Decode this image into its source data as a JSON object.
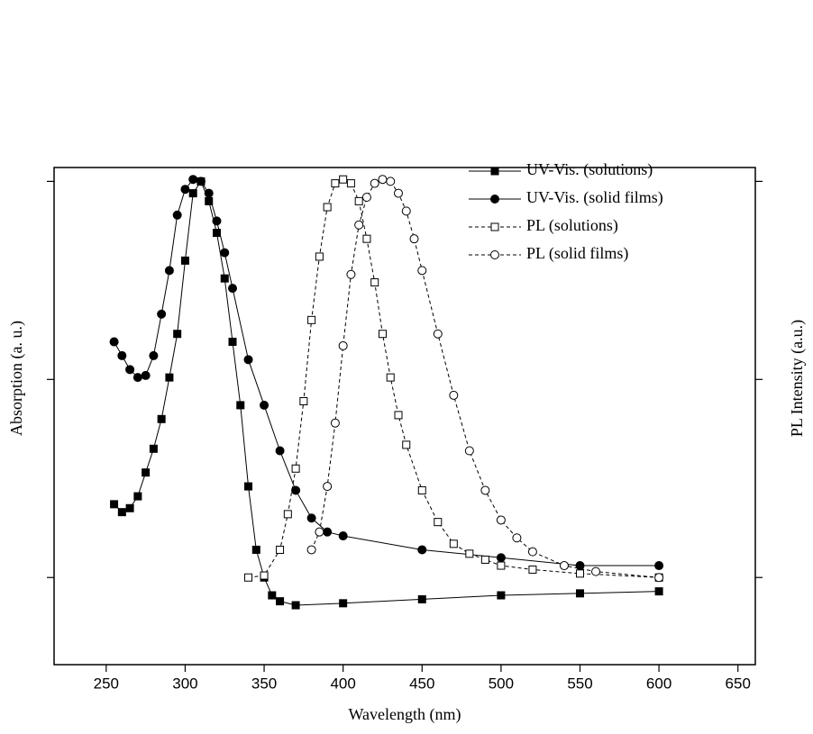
{
  "chart_data": {
    "type": "line",
    "x_label": "Wavelength (nm)",
    "y_label": "Absorption (a. u.)",
    "y2_label": "PL Intensity (a.u.)",
    "xlim": [
      217,
      661
    ],
    "xticks": [
      250,
      300,
      350,
      400,
      450,
      500,
      550,
      600,
      650
    ],
    "ylim": [
      -0.44,
      2.07
    ],
    "yticks": [
      0,
      1,
      2
    ],
    "legend": "upper right",
    "series": [
      {
        "name": "UV-Vis. (solutions)",
        "color": "#000000",
        "marker": "square",
        "filled": true,
        "linestyle": "solid",
        "x": [
          255,
          260,
          265,
          270,
          275,
          280,
          285,
          290,
          295,
          300,
          305,
          310,
          315,
          320,
          325,
          330,
          335,
          340,
          345,
          350,
          355,
          360,
          370,
          400,
          450,
          500,
          550,
          600
        ],
        "values": [
          0.37,
          0.33,
          0.35,
          0.41,
          0.53,
          0.65,
          0.8,
          1.01,
          1.23,
          1.6,
          1.94,
          2.0,
          1.9,
          1.74,
          1.51,
          1.19,
          0.87,
          0.46,
          0.14,
          0.0,
          -0.09,
          -0.12,
          -0.14,
          -0.13,
          -0.11,
          -0.09,
          -0.08,
          -0.07
        ]
      },
      {
        "name": "UV-Vis. (solid films)",
        "color": "#000000",
        "marker": "circle",
        "filled": true,
        "linestyle": "solid",
        "x": [
          255,
          260,
          265,
          270,
          275,
          280,
          285,
          290,
          295,
          300,
          305,
          310,
          315,
          320,
          325,
          330,
          340,
          350,
          360,
          370,
          380,
          390,
          400,
          450,
          500,
          550,
          600
        ],
        "values": [
          1.19,
          1.12,
          1.05,
          1.01,
          1.02,
          1.12,
          1.33,
          1.55,
          1.83,
          1.96,
          2.01,
          2.0,
          1.94,
          1.8,
          1.64,
          1.46,
          1.1,
          0.87,
          0.64,
          0.44,
          0.3,
          0.23,
          0.21,
          0.14,
          0.1,
          0.06,
          0.06
        ]
      },
      {
        "name": "PL (solutions)",
        "color": "#000000",
        "marker": "square",
        "filled": false,
        "linestyle": "dashed",
        "x": [
          340,
          350,
          360,
          365,
          370,
          375,
          380,
          385,
          390,
          395,
          400,
          405,
          410,
          415,
          420,
          425,
          430,
          435,
          440,
          450,
          460,
          470,
          480,
          490,
          500,
          520,
          550,
          600
        ],
        "values": [
          0.0,
          0.01,
          0.14,
          0.32,
          0.55,
          0.89,
          1.3,
          1.62,
          1.87,
          1.99,
          2.01,
          1.99,
          1.9,
          1.71,
          1.49,
          1.23,
          1.01,
          0.82,
          0.67,
          0.44,
          0.28,
          0.17,
          0.12,
          0.09,
          0.06,
          0.04,
          0.02,
          0.0
        ]
      },
      {
        "name": "PL (solid films)",
        "color": "#000000",
        "marker": "circle",
        "filled": false,
        "linestyle": "dashed",
        "x": [
          380,
          385,
          390,
          395,
          400,
          405,
          410,
          415,
          420,
          425,
          430,
          435,
          440,
          445,
          450,
          460,
          470,
          480,
          490,
          500,
          510,
          520,
          540,
          560,
          600
        ],
        "values": [
          0.14,
          0.23,
          0.46,
          0.78,
          1.17,
          1.53,
          1.78,
          1.92,
          1.99,
          2.01,
          2.0,
          1.94,
          1.85,
          1.71,
          1.55,
          1.23,
          0.92,
          0.64,
          0.44,
          0.29,
          0.2,
          0.13,
          0.06,
          0.03,
          0.0
        ]
      }
    ]
  }
}
